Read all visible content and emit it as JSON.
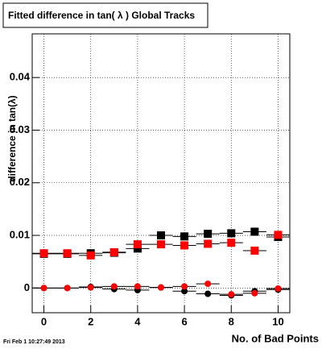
{
  "chart_data": {
    "type": "scatter",
    "title": "Fitted difference in tan( λ )  Global Tracks",
    "x_label": "No. of Bad Points",
    "y_label": "difference in tan(λ)",
    "timestamp": "Fri Feb  1 10:27:49 2013",
    "x": [
      0,
      1,
      2,
      3,
      4,
      5,
      6,
      7,
      8,
      9,
      10
    ],
    "xerr": 0.5,
    "series": [
      {
        "color": "#000000",
        "marker": "square",
        "values": [
          0.0065,
          0.0065,
          0.0066,
          0.0067,
          0.0075,
          0.01,
          0.0098,
          0.0103,
          0.0104,
          0.0107,
          0.0097
        ]
      },
      {
        "color": "#ff0000",
        "marker": "square",
        "values": [
          0.0066,
          0.0066,
          0.0062,
          0.0068,
          0.0083,
          0.0083,
          0.0081,
          0.0084,
          0.0086,
          0.0071,
          0.0101
        ]
      },
      {
        "color": "#000000",
        "marker": "circle",
        "values": [
          0.0,
          0.0,
          0.0002,
          -0.0002,
          -0.0004,
          0.0001,
          -0.0006,
          -0.0011,
          -0.0014,
          -0.0006,
          -0.0003
        ]
      },
      {
        "color": "#ff0000",
        "marker": "circle",
        "values": [
          0.0,
          0.0,
          0.0001,
          0.0003,
          0.0003,
          0.0001,
          0.0003,
          0.0008,
          -0.0012,
          -0.001,
          -0.0001
        ]
      }
    ],
    "xlim": [
      -0.5,
      10.5
    ],
    "ylim": [
      -0.0047,
      0.0483
    ],
    "xticks": [
      0,
      2,
      4,
      6,
      8,
      10
    ],
    "yticks": [
      0,
      0.01,
      0.02,
      0.03,
      0.04
    ],
    "grid": true
  }
}
